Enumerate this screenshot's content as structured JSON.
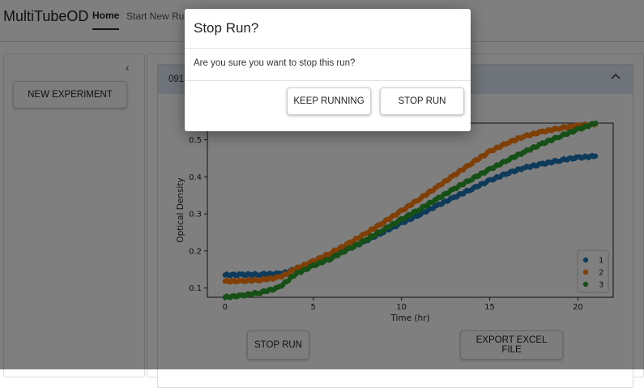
{
  "header": {
    "app_title": "MultiTubeOD",
    "nav": {
      "home": "Home",
      "start_new_run": "Start New Run"
    }
  },
  "sidebar": {
    "collapse_glyph": "‹",
    "new_experiment_label": "NEW EXPERIMENT"
  },
  "main": {
    "experiment_title": "091",
    "accordion_chevron": "^",
    "stop_run_label": "STOP RUN",
    "export_label": "EXPORT EXCEL FILE"
  },
  "dialog": {
    "title": "Stop Run?",
    "message": "Are you sure you want to stop this run?",
    "keep_running_label": "KEEP RUNNING",
    "stop_run_label": "STOP RUN"
  },
  "chart_data": {
    "type": "scatter",
    "title": "",
    "xlabel": "Time (hr)",
    "ylabel": "Optical Density",
    "xlim": [
      -1,
      22
    ],
    "ylim": [
      0.075,
      0.545
    ],
    "xticks": [
      0,
      5,
      10,
      15,
      20
    ],
    "yticks": [
      0.1,
      0.2,
      0.3,
      0.4,
      0.5
    ],
    "grid": false,
    "legend_position": "bottom-right",
    "series": [
      {
        "name": "1",
        "color": "#1f77b4",
        "x": [
          0,
          1,
          2,
          3,
          3.5,
          4,
          5,
          6,
          7,
          8,
          9,
          10,
          11,
          12,
          13,
          14,
          15,
          16,
          17,
          18,
          19,
          20,
          21
        ],
        "y": [
          0.135,
          0.136,
          0.137,
          0.138,
          0.142,
          0.152,
          0.168,
          0.185,
          0.205,
          0.228,
          0.252,
          0.275,
          0.298,
          0.322,
          0.345,
          0.368,
          0.39,
          0.41,
          0.425,
          0.435,
          0.445,
          0.452,
          0.456
        ]
      },
      {
        "name": "2",
        "color": "#ff7f0e",
        "x": [
          0,
          1,
          2,
          3,
          3.5,
          4,
          5,
          6,
          7,
          8,
          9,
          10,
          11,
          12,
          13,
          14,
          15,
          16,
          17,
          18,
          19,
          20,
          21
        ],
        "y": [
          0.118,
          0.119,
          0.122,
          0.128,
          0.138,
          0.152,
          0.172,
          0.195,
          0.22,
          0.248,
          0.278,
          0.308,
          0.34,
          0.372,
          0.405,
          0.438,
          0.468,
          0.492,
          0.51,
          0.522,
          0.532,
          0.538,
          0.542
        ]
      },
      {
        "name": "3",
        "color": "#2ca02c",
        "x": [
          0,
          1,
          2,
          3,
          3.5,
          4,
          5,
          6,
          7,
          8,
          9,
          10,
          11,
          12,
          13,
          14,
          15,
          16,
          17,
          18,
          19,
          20,
          21
        ],
        "y": [
          0.075,
          0.08,
          0.088,
          0.1,
          0.118,
          0.138,
          0.16,
          0.18,
          0.205,
          0.23,
          0.258,
          0.285,
          0.312,
          0.34,
          0.368,
          0.395,
          0.42,
          0.445,
          0.468,
          0.49,
          0.51,
          0.528,
          0.545
        ]
      }
    ]
  }
}
